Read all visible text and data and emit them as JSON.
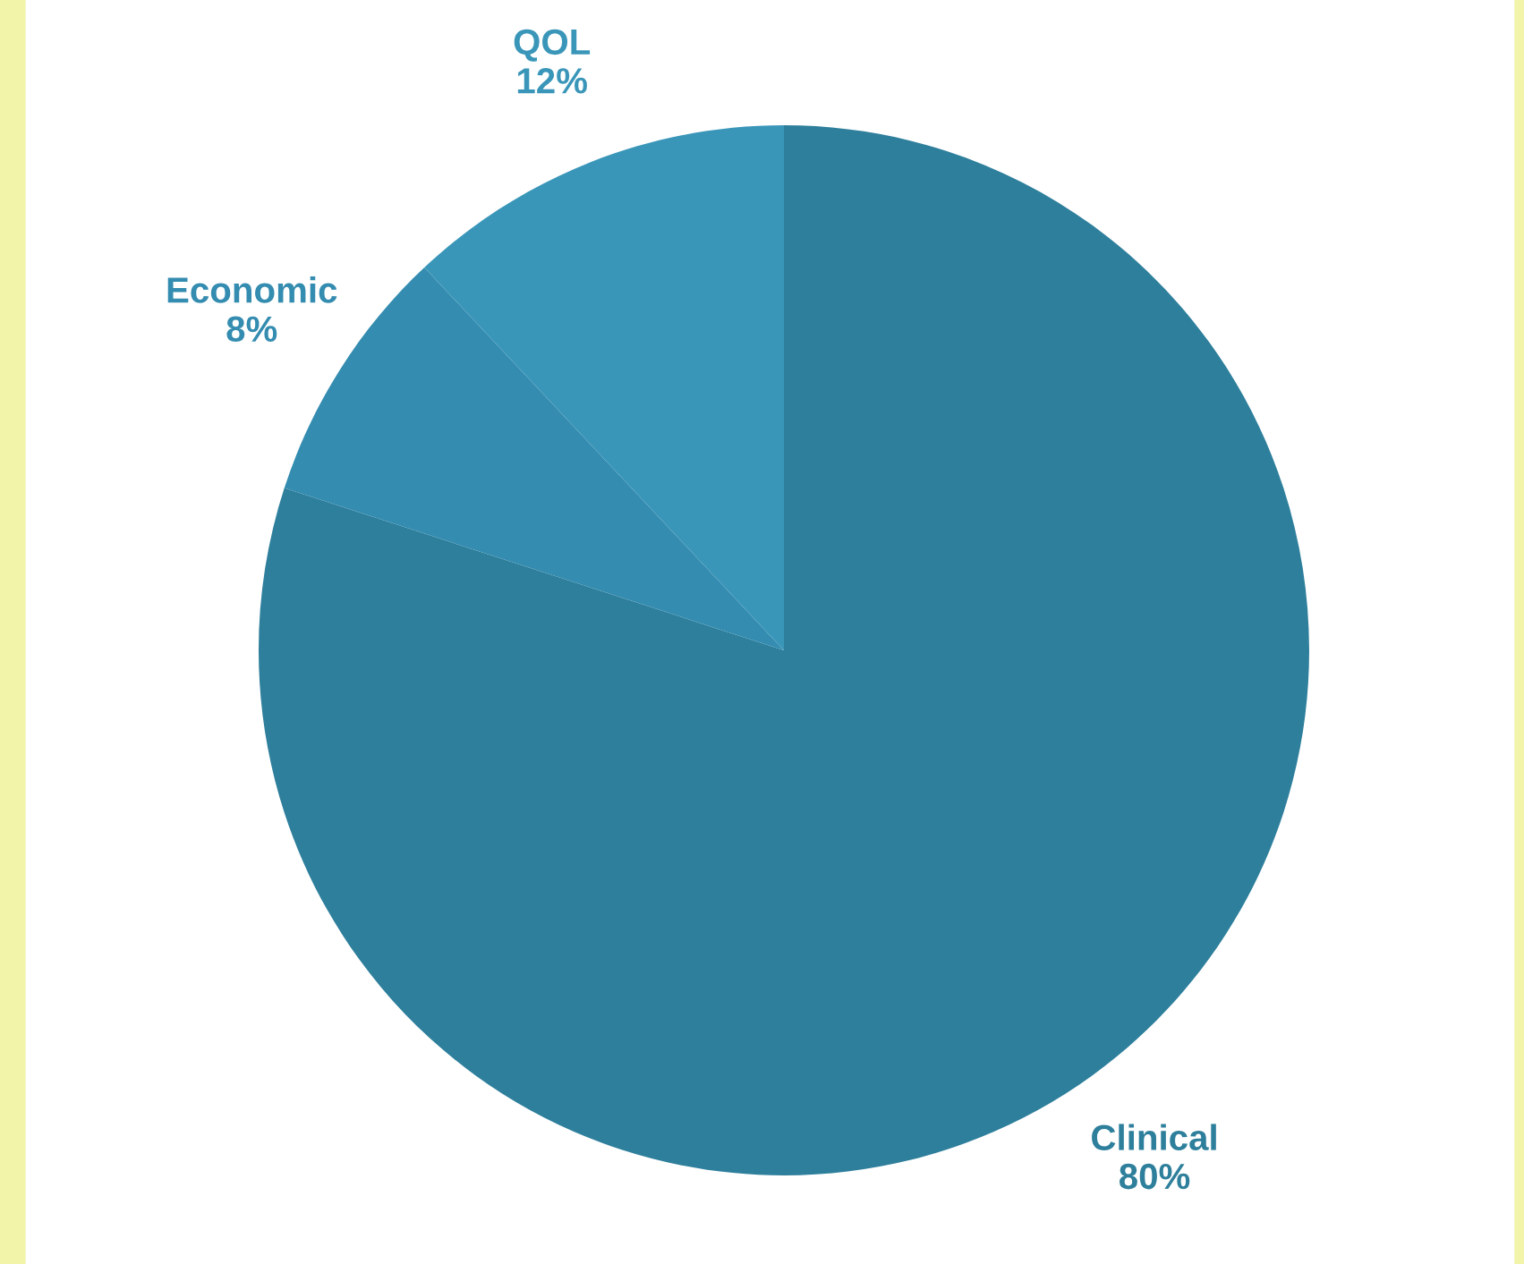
{
  "chart_data": {
    "type": "pie",
    "categories": [
      "Clinical",
      "Economic",
      "QOL"
    ],
    "values": [
      80,
      8,
      12
    ],
    "colors": [
      "#2e7f9c",
      "#348cb0",
      "#3a96b9"
    ],
    "value_labels": [
      "80%",
      "8%",
      "12%"
    ],
    "legend": false
  }
}
